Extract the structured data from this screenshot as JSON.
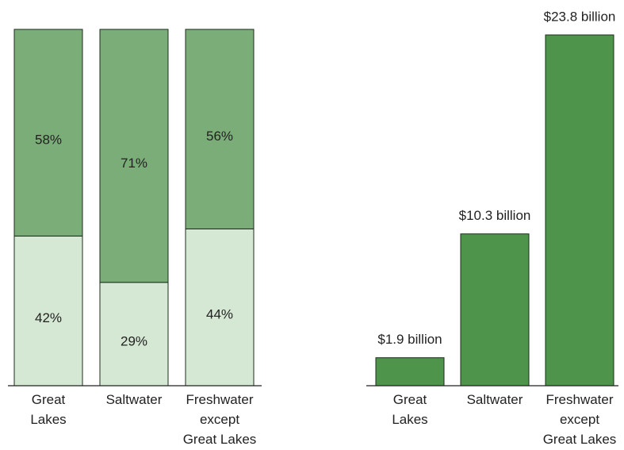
{
  "chart_data": [
    {
      "type": "stacked_percent_bar",
      "categories": [
        "Great\nLakes",
        "Saltwater",
        "Freshwater\nexcept\nGreat Lakes"
      ],
      "series": [
        {
          "color": "#d5e8d4",
          "values": [
            42,
            29,
            44
          ],
          "value_labels": [
            "42%",
            "29%",
            "44%"
          ]
        },
        {
          "color": "#7aad78",
          "values": [
            58,
            71,
            56
          ],
          "value_labels": [
            "58%",
            "71%",
            "56%"
          ]
        }
      ]
    },
    {
      "type": "bar",
      "categories": [
        "Great\nLakes",
        "Saltwater",
        "Freshwater\nexcept\nGreat Lakes"
      ],
      "values": [
        1.9,
        10.3,
        23.8
      ],
      "value_labels": [
        "$1.9 billion",
        "$10.3 billion",
        "$23.8 billion"
      ],
      "color": "#4e944a"
    }
  ]
}
